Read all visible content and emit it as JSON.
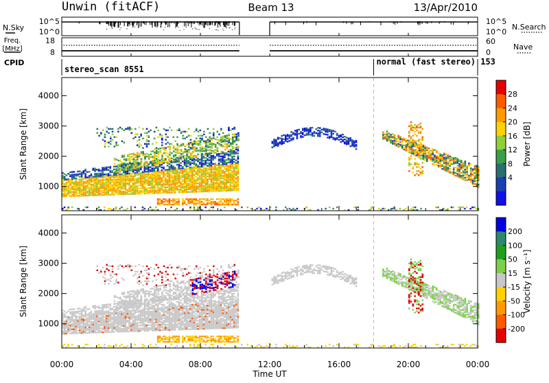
{
  "header": {
    "title": "Unwin (fitACF)",
    "beam": "Beam 13",
    "date": "13/Apr/2010"
  },
  "side_labels": {
    "nsky": "N.Sky",
    "nsearch": "N.Search",
    "freq_line1": "Freq.",
    "freq_line2": "[MHz]",
    "nave": "Nave",
    "cpid": "CPID"
  },
  "chart_data": [
    {
      "type": "line",
      "name": "noise-panel",
      "left_ticks": [
        "10^5",
        "10^0"
      ],
      "right_ticks": [
        "10^5",
        "10^0"
      ],
      "data_gaps_ut": [
        [
          10.25,
          12.0
        ]
      ]
    },
    {
      "type": "line",
      "name": "frequency-panel",
      "left_ticks": [
        "18",
        "8"
      ],
      "right_ticks": [
        "60",
        "0"
      ],
      "data_gaps_ut": [
        [
          10.25,
          12.0
        ]
      ]
    },
    {
      "type": "table",
      "name": "cpid-panel",
      "segments": [
        {
          "label": "stereo_scan 8551",
          "start_ut": 0,
          "end_ut": 18
        },
        {
          "label": "normal (fast stereo) 153",
          "start_ut": 18,
          "end_ut": 24
        }
      ]
    },
    {
      "type": "heatmap",
      "name": "power-panel",
      "ylabel": "Slant Range [km]",
      "ylim": [
        200,
        4600
      ],
      "yticks": [
        1000,
        2000,
        3000,
        4000
      ],
      "colorbar": {
        "label": "Power [dB]",
        "ticks": [
          "28",
          "24",
          "20",
          "16",
          "12",
          "8",
          "4"
        ],
        "colors": [
          "#e60000",
          "#ff5a00",
          "#ff9a00",
          "#ffd200",
          "#8fcf3a",
          "#3a9e4a",
          "#2a6f6f",
          "#1a3fb0",
          "#1010e8"
        ]
      }
    },
    {
      "type": "heatmap",
      "name": "velocity-panel",
      "ylabel": "Slant Range [km]",
      "ylim": [
        200,
        4600
      ],
      "yticks": [
        1000,
        2000,
        3000,
        4000
      ],
      "colorbar": {
        "label": "Velocity [m s⁻¹]",
        "ticks": [
          "200",
          "100",
          "50",
          "15",
          "-15",
          "-50",
          "-100",
          "-200"
        ],
        "colors": [
          "#0000e0",
          "#2a8a6a",
          "#1ea01e",
          "#7ed04a",
          "#c8c8c8",
          "#ffd200",
          "#ff9a00",
          "#ff5a00",
          "#e60000"
        ]
      }
    }
  ],
  "time_axis": {
    "label": "Time UT",
    "ticks": [
      "00:00",
      "04:00",
      "08:00",
      "12:00",
      "16:00",
      "20:00",
      "00:00"
    ],
    "range_ut": [
      0,
      24
    ]
  }
}
